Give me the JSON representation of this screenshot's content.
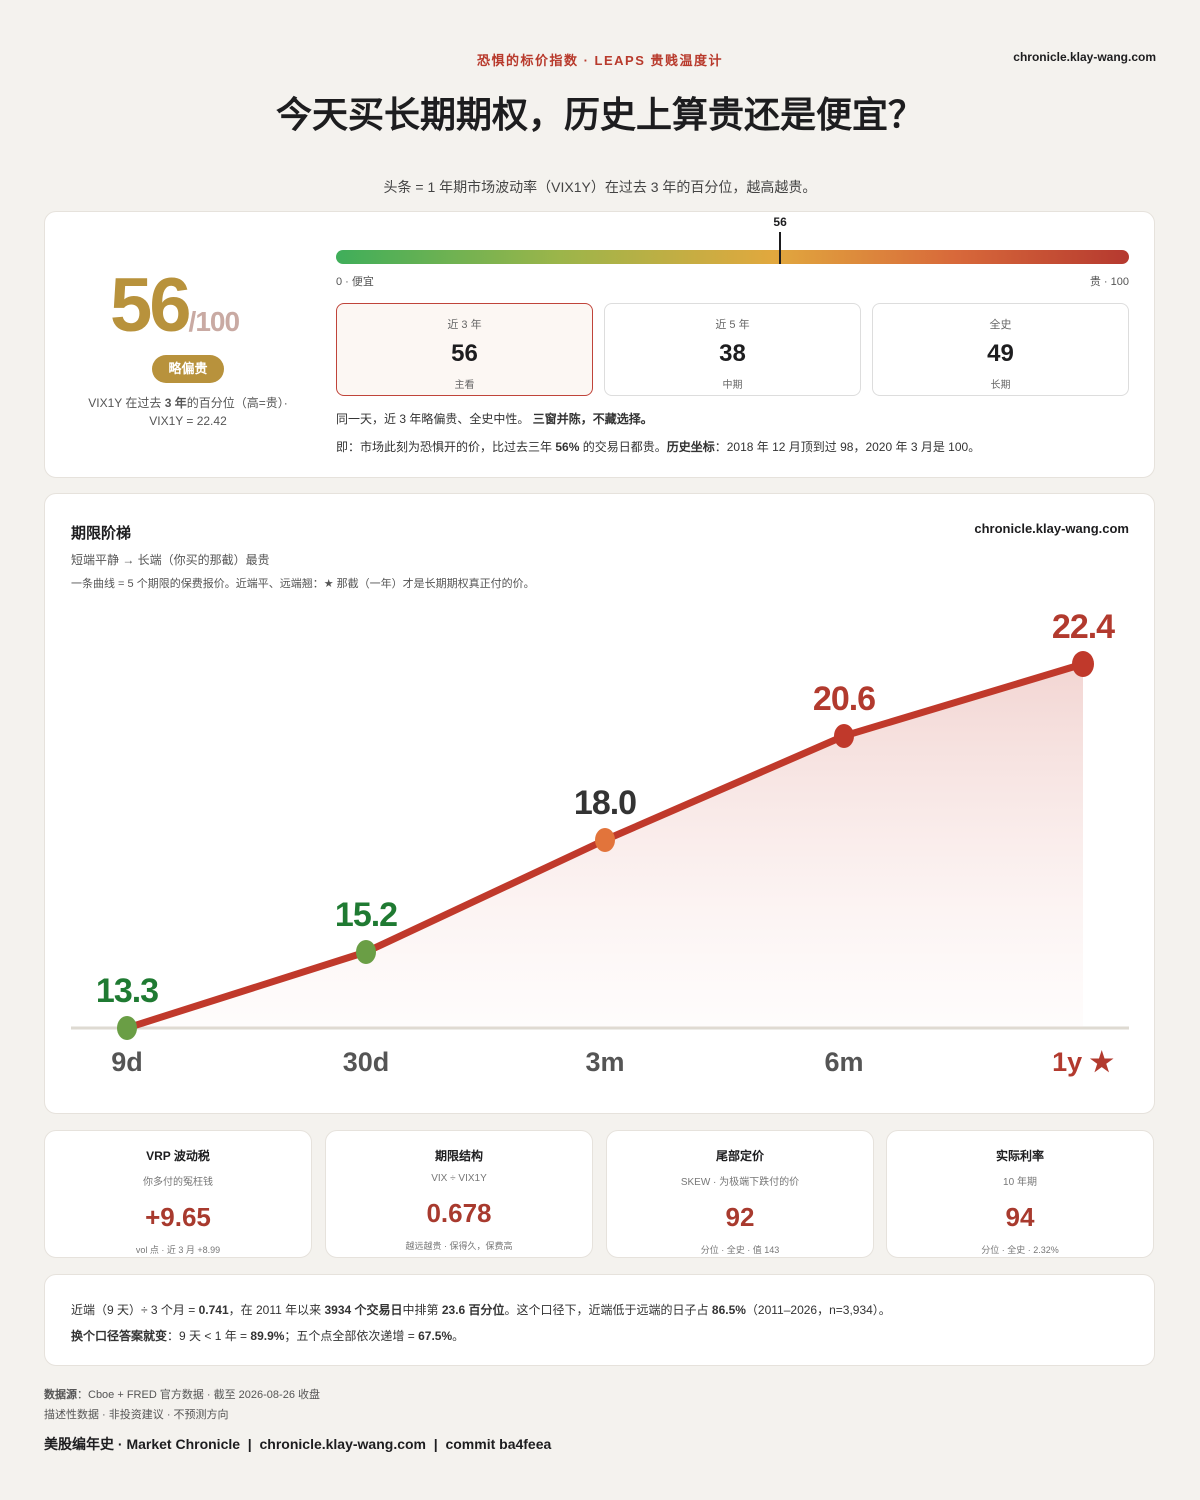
{
  "header": {
    "kicker": "恐惧的标价指数 · LEAPS 贵贱温度计",
    "site": "chronicle.klay-wang.com",
    "title": "今天买长期期权，历史上算贵还是便宜？",
    "subtitle": "头条 = 1 年期市场波动率（VIX1Y）在过去 3 年的百分位，越高越贵。"
  },
  "gauge": {
    "score": "56",
    "denominator": "/100",
    "badge": "略偏贵",
    "caption_pre": "VIX1Y 在过去 ",
    "caption_bold": "3 年",
    "caption_post": "的百分位（高=贵）·",
    "caption_line2": "VIX1Y = 22.42",
    "marker_value": 56,
    "marker_label": "56",
    "low_label": "0 · 便宜",
    "high_label": "贵 · 100",
    "windows": [
      {
        "label": "近 3 年",
        "value": "56",
        "sub": "主看",
        "active": true
      },
      {
        "label": "近 5 年",
        "value": "38",
        "sub": "中期",
        "active": false
      },
      {
        "label": "全史",
        "value": "49",
        "sub": "长期",
        "active": false
      }
    ],
    "note1_pre": "同一天，近 3 年略偏贵、全史中性。",
    "note1_bold": "三窗并陈，不藏选择。",
    "note2_a": "即：市场此刻为恐惧开的价，比过去三年 ",
    "note2_b": "56%",
    "note2_c": " 的交易日都贵。",
    "note2_d": "历史坐标",
    "note2_e": "：2018 年 12 月顶到过 98，2020 年 3 月是 100。"
  },
  "term": {
    "title": "期限阶梯",
    "site": "chronicle.klay-wang.com",
    "sub1": "短端平静 → 长端（你买的那截）最贵",
    "sub2": "一条曲线 = 5 个期限的保费报价。近端平、远端翘：★ 那截（一年）才是长期期权真正付的价。"
  },
  "chart_data": {
    "type": "line",
    "categories": [
      "9d",
      "30d",
      "3m",
      "6m",
      "1y"
    ],
    "values": [
      13.3,
      15.2,
      18.0,
      20.6,
      22.4
    ],
    "value_labels": [
      "13.3",
      "15.2",
      "18.0",
      "20.6",
      "22.4"
    ],
    "point_colors": [
      "#6a9e45",
      "#6a9e45",
      "#e2743b",
      "#c0392b",
      "#c0392b"
    ],
    "label_colors": [
      "#1f7a32",
      "#1f7a32",
      "#333333",
      "#b23a2e",
      "#b23a2e"
    ],
    "line_color": "#c0392b",
    "starred_category": "1y",
    "star_glyph": "★",
    "ylim": [
      13.3,
      22.4
    ],
    "grid": false
  },
  "stats": [
    {
      "title": "VRP 波动税",
      "sub": "你多付的冤枉钱",
      "value": "+9.65",
      "foot": "vol 点 · 近 3 月 +8.99"
    },
    {
      "title": "期限结构",
      "sub": "VIX ÷ VIX1Y",
      "value": "0.678",
      "foot": "越远越贵 · 保得久，保费高"
    },
    {
      "title": "尾部定价",
      "sub": "SKEW · 为极端下跌付的价",
      "value": "92",
      "foot": "分位 · 全史 · 值 143"
    },
    {
      "title": "实际利率",
      "sub": "10 年期",
      "value": "94",
      "foot": "分位 · 全史 · 2.32%"
    }
  ],
  "footnote": {
    "l1_a": "近端（9 天）÷ 3 个月 = ",
    "l1_b": "0.741",
    "l1_c": "，在 2011 年以来 ",
    "l1_d": "3934 个交易日",
    "l1_e": "中排第 ",
    "l1_f": "23.6 百分位",
    "l1_g": "。这个口径下，近端低于远端的日子占 ",
    "l1_h": "86.5%",
    "l1_i": "（2011–2026，n=3,934）。",
    "l2_a": "换个口径答案就变",
    "l2_b": "：9 天 < 1 年 = ",
    "l2_c": "89.9%",
    "l2_d": "；五个点全部依次递增 = ",
    "l2_e": "67.5%",
    "l2_f": "。"
  },
  "source": {
    "label": "数据源",
    "text": "：Cboe + FRED 官方数据 · 截至 2026-08-26 收盘",
    "line2": "描述性数据 · 非投资建议 · 不预测方向",
    "brand": "美股编年史 · Market Chronicle  |  chronicle.klay-wang.com  |  commit ba4feea"
  }
}
